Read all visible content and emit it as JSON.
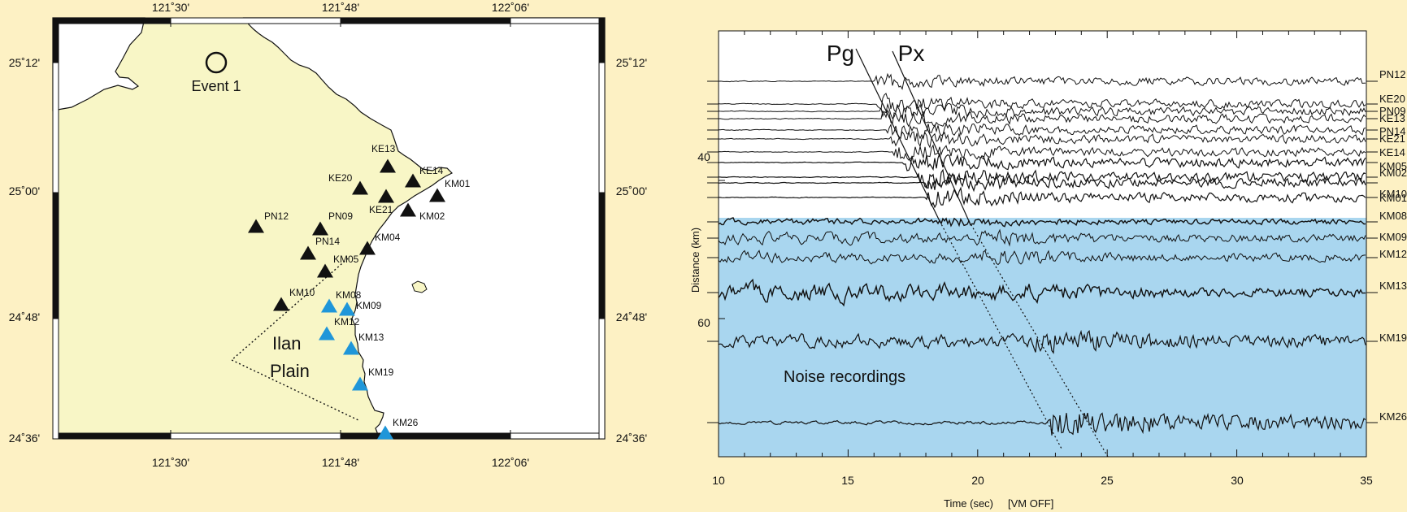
{
  "colors": {
    "background": "#fdf1c4",
    "land": "#f8f6c6",
    "noise_band": "#a9d6ef",
    "blue_station": "#1f96d9",
    "black_station": "#111111",
    "line": "#111111"
  },
  "map": {
    "lon_ticks": [
      "121˚30'",
      "121˚48'",
      "122˚06'"
    ],
    "lat_ticks": [
      "25˚12'",
      "25˚00'",
      "24˚48'",
      "24˚36'"
    ],
    "event_label": "Event 1",
    "plain_label": [
      "Ilan",
      "Plain"
    ],
    "stations": [
      {
        "name": "KE13",
        "color": "black"
      },
      {
        "name": "KE20",
        "color": "black"
      },
      {
        "name": "KE14",
        "color": "black"
      },
      {
        "name": "KM01",
        "color": "black"
      },
      {
        "name": "KE21",
        "color": "black"
      },
      {
        "name": "KM02",
        "color": "black"
      },
      {
        "name": "PN12",
        "color": "black"
      },
      {
        "name": "PN09",
        "color": "black"
      },
      {
        "name": "PN14",
        "color": "black"
      },
      {
        "name": "KM04",
        "color": "black"
      },
      {
        "name": "KM05",
        "color": "black"
      },
      {
        "name": "KM10",
        "color": "black"
      },
      {
        "name": "KM08",
        "color": "blue"
      },
      {
        "name": "KM09",
        "color": "blue"
      },
      {
        "name": "KM12",
        "color": "blue"
      },
      {
        "name": "KM13",
        "color": "blue"
      },
      {
        "name": "KM19",
        "color": "blue"
      },
      {
        "name": "KM26",
        "color": "blue"
      }
    ]
  },
  "seismogram": {
    "phase_labels": [
      "Pg",
      "Px"
    ],
    "noise_label": "Noise recordings",
    "x_ticks": [
      "10",
      "15",
      "20",
      "25",
      "30",
      "35"
    ],
    "y_ticks": [
      "40",
      "60"
    ],
    "y_label": "Distance (km)",
    "x_label": "Time (sec)",
    "vm_label": "[VM OFF]",
    "trace_labels": [
      "PN12",
      "KE20",
      "PN09",
      "KE13",
      "PN14",
      "KE21",
      "KE14",
      "KM05",
      "KM02",
      "KM10",
      "KM01",
      "KM08",
      "KM09",
      "KM12",
      "KM13",
      "KM19",
      "KM26"
    ]
  }
}
